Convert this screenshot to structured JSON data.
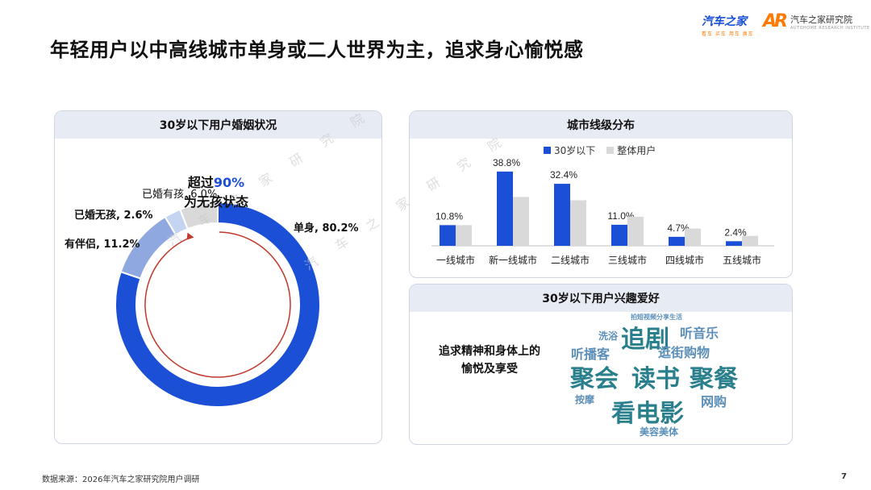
{
  "title": "年轻用户以中高线城市单身或二人世界为主，追求身心愉悦感",
  "logos": {
    "brand1": "汽车之家",
    "brand1_tagline": "看车 买车 用车 换车",
    "brand2_mark": "AR",
    "brand2": "汽车之家研究院",
    "brand2_tagline": "AUTOHOME RESEARCH INSTITUTE"
  },
  "watermark": "汽 车 之 家 研 究 院",
  "colors": {
    "primary": "#1a4fd6",
    "gray": "#d9d9d9",
    "light_blue": "#8fa9e0",
    "pale_blue": "#c5d5f1",
    "wordcloud_blue": "#5c8fb8",
    "wordcloud_teal": "#2a7f8c"
  },
  "marriage_panel": {
    "title": "30岁以下用户婚姻状况",
    "center_line1_prefix": "超过",
    "center_line1_highlight": "90%",
    "center_line1_suffix": "",
    "center_line2": "为无孩状态"
  },
  "city_panel": {
    "title": "城市线级分布",
    "legend_a": "30岁以下",
    "legend_b": "整体用户"
  },
  "hobby_panel": {
    "title": "30岁以下用户兴趣爱好",
    "intro_line1": "追求精神和身体上的",
    "intro_line2": "愉悦及享受",
    "words": [
      {
        "text": "拍短视频分享生活",
        "color": "#5c8fb8",
        "weight": 1
      },
      {
        "text": "洗浴",
        "color": "#5c8fb8",
        "weight": 2
      },
      {
        "text": "追剧",
        "color": "#2a7f8c",
        "weight": 5
      },
      {
        "text": "听音乐",
        "color": "#5c8fb8",
        "weight": 3
      },
      {
        "text": "听播客",
        "color": "#5c8fb8",
        "weight": 3
      },
      {
        "text": "逛街购物",
        "color": "#5c8fb8",
        "weight": 3
      },
      {
        "text": "聚会",
        "color": "#2a7f8c",
        "weight": 5
      },
      {
        "text": "读书",
        "color": "#2a7f8c",
        "weight": 5
      },
      {
        "text": "聚餐",
        "color": "#2a7f8c",
        "weight": 5
      },
      {
        "text": "按摩",
        "color": "#5c8fb8",
        "weight": 2
      },
      {
        "text": "网购",
        "color": "#5c8fb8",
        "weight": 3
      },
      {
        "text": "看电影",
        "color": "#2a7f8c",
        "weight": 5
      },
      {
        "text": "美容美体",
        "color": "#5c8fb8",
        "weight": 2
      }
    ]
  },
  "source": "数据来源：2026年汽车之家研究院用户调研",
  "page_number": "7",
  "chart_data": [
    {
      "type": "pie",
      "title": "30岁以下用户婚姻状况",
      "donut": true,
      "slices": [
        {
          "label": "单身",
          "value": 80.2,
          "display": "单身, 80.2%",
          "color": "#1a4fd6"
        },
        {
          "label": "有伴侣",
          "value": 11.2,
          "display": "有伴侣, 11.2%",
          "color": "#8fa9e0"
        },
        {
          "label": "已婚无孩",
          "value": 2.6,
          "display": "已婚无孩, 2.6%",
          "color": "#c5d5f1"
        },
        {
          "label": "已婚有孩",
          "value": 6.0,
          "display": "已婚有孩, 6.0%",
          "color": "#d9d9d9"
        }
      ]
    },
    {
      "type": "bar",
      "title": "城市线级分布",
      "categories": [
        "一线城市",
        "新一线城市",
        "二线城市",
        "三线城市",
        "四线城市",
        "五线城市"
      ],
      "series": [
        {
          "name": "30岁以下",
          "values": [
            10.8,
            38.8,
            32.4,
            11.0,
            4.7,
            2.4
          ],
          "labels": [
            "10.8%",
            "38.8%",
            "32.4%",
            "11.0%",
            "4.7%",
            "2.4%"
          ],
          "color": "#1a4fd6"
        },
        {
          "name": "整体用户",
          "values": [
            10.8,
            25.5,
            23.8,
            15.2,
            9.0,
            5.2
          ],
          "color": "#d9d9d9"
        }
      ],
      "ylim": [
        0,
        40
      ],
      "legend": "top"
    }
  ]
}
